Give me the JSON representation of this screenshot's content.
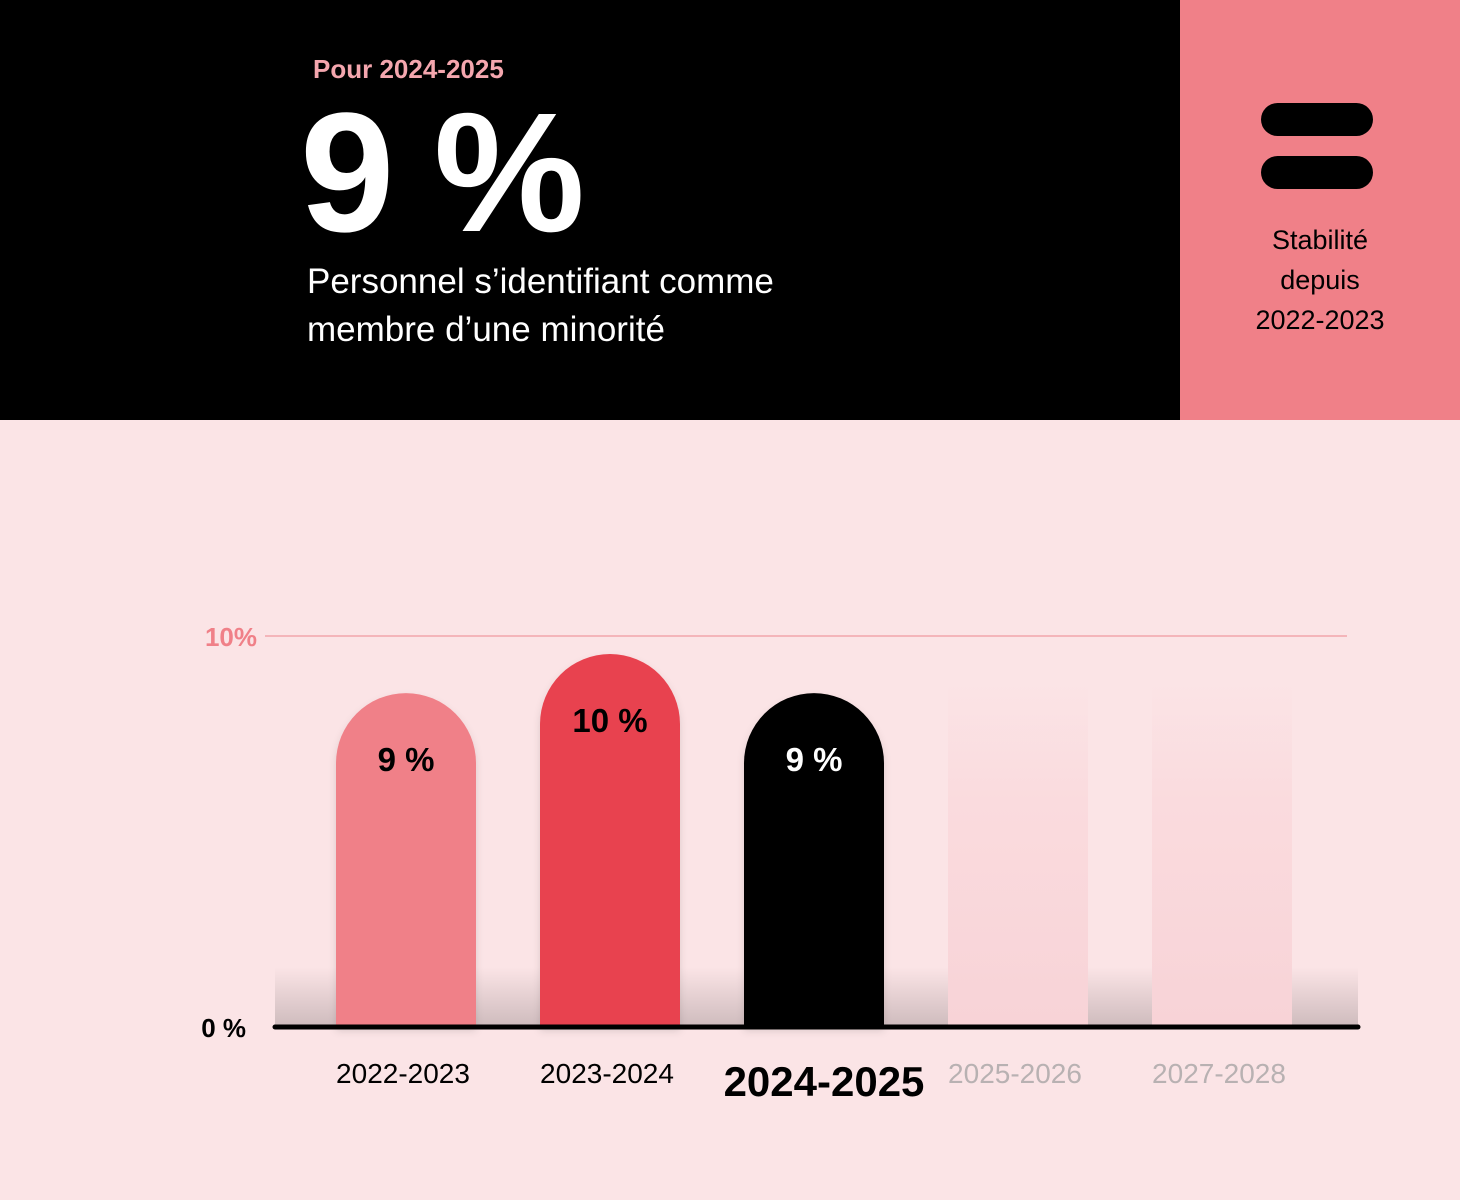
{
  "header": {
    "year_label": "Pour 2024-2025",
    "value": "9 %",
    "description": "Personnel s’identifiant comme membre d’une minorité"
  },
  "trend": {
    "icon": "equals-icon",
    "line1": "Stabilité",
    "line2": "depuis",
    "line3": "2022-2023"
  },
  "colors": {
    "pink": "#f08088",
    "red": "#e8434f",
    "black": "#000000",
    "background": "#fbe4e6"
  },
  "chart_data": {
    "type": "bar",
    "title": "",
    "xlabel": "",
    "ylabel": "",
    "ylim": [
      0,
      10
    ],
    "y_ticks": [
      {
        "value": 0,
        "label": "0 %"
      },
      {
        "value": 10,
        "label": "10%"
      }
    ],
    "categories": [
      "2022-2023",
      "2023-2024",
      "2024-2025",
      "2025-2026",
      "2027-2028"
    ],
    "values": [
      9,
      10,
      9,
      null,
      null
    ],
    "value_labels": [
      "9 %",
      "10 %",
      "9 %",
      "",
      ""
    ],
    "bar_colors": [
      "#f08088",
      "#e8434f",
      "#000000",
      "#fadadd",
      "#fadadd"
    ],
    "highlight_category": "2024-2025"
  }
}
